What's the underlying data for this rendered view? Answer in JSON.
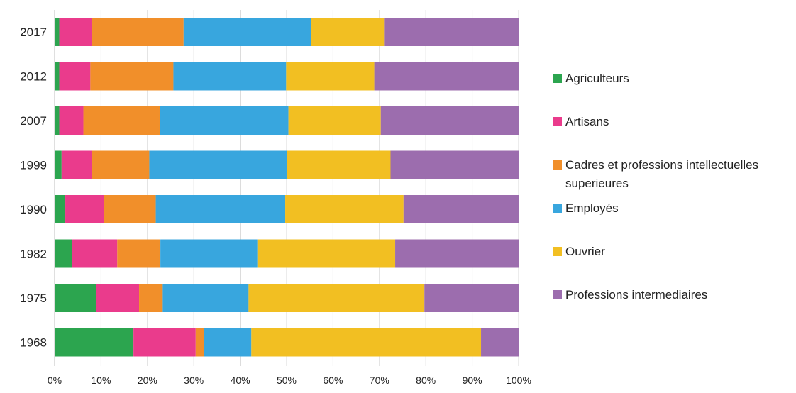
{
  "chart_data": {
    "type": "bar",
    "orientation": "horizontal",
    "stacked": true,
    "normalized_percent": true,
    "categories": [
      "2017",
      "2012",
      "2007",
      "1999",
      "1990",
      "1982",
      "1975",
      "1968"
    ],
    "series": [
      {
        "name": "Agriculteurs",
        "color": "#2ca54f",
        "values": [
          1,
          1,
          1,
          1.5,
          2.3,
          3.8,
          9,
          17
        ]
      },
      {
        "name": "Artisans",
        "color": "#ea3b8c",
        "values": [
          7,
          6.7,
          5.2,
          6.6,
          8.4,
          9.7,
          9.2,
          13.4
        ]
      },
      {
        "name": "Cadres et professions intellectuelles superieures",
        "color": "#f18f2a",
        "values": [
          19.8,
          17.9,
          16.5,
          12.3,
          11.1,
          9.3,
          5.1,
          1.8
        ]
      },
      {
        "name": "Employés",
        "color": "#38a6de",
        "values": [
          27.5,
          24.3,
          27.7,
          29.6,
          27.9,
          20.9,
          18.5,
          10.2
        ]
      },
      {
        "name": "Ouvrier",
        "color": "#f2bf22",
        "values": [
          15.7,
          19,
          19.9,
          22.4,
          25.5,
          29.7,
          37.9,
          49.5
        ]
      },
      {
        "name": "Professions intermediaires",
        "color": "#9c6dae",
        "values": [
          29,
          31.1,
          29.7,
          27.6,
          24.8,
          26.6,
          20.3,
          8.1
        ]
      }
    ],
    "x_ticks": [
      "0%",
      "10%",
      "20%",
      "30%",
      "40%",
      "50%",
      "60%",
      "70%",
      "80%",
      "90%",
      "100%"
    ],
    "xlim": [
      0,
      100
    ],
    "grid": "vertical",
    "legend_position": "right",
    "title": "",
    "xlabel": "",
    "ylabel": ""
  }
}
